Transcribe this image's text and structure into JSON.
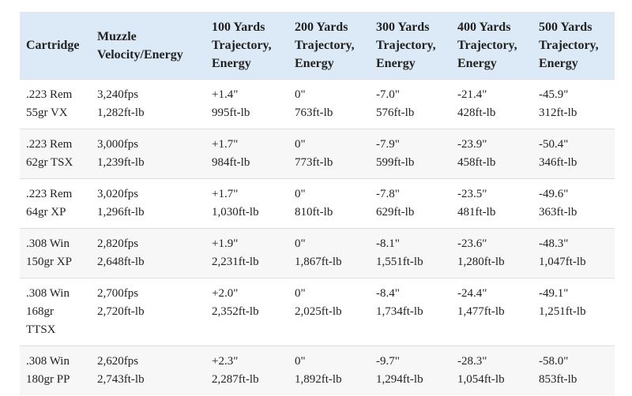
{
  "table": {
    "headers": [
      [
        "Cartridge"
      ],
      [
        "Muzzle",
        "Velocity/Energy"
      ],
      [
        "100 Yards",
        "Trajectory,",
        "Energy"
      ],
      [
        "200 Yards",
        "Trajectory,",
        "Energy"
      ],
      [
        "300 Yards",
        "Trajectory,",
        "Energy"
      ],
      [
        "400 Yards",
        "Trajectory,",
        "Energy"
      ],
      [
        "500 Yards",
        "Trajectory,",
        "Energy"
      ]
    ],
    "rows": [
      [
        [
          ".223 Rem",
          "55gr VX"
        ],
        [
          "3,240fps",
          "1,282ft-lb"
        ],
        [
          "+1.4\"",
          "995ft-lb"
        ],
        [
          "0\"",
          "763ft-lb"
        ],
        [
          "-7.0\"",
          "576ft-lb"
        ],
        [
          "-21.4\"",
          "428ft-lb"
        ],
        [
          "-45.9\"",
          "312ft-lb"
        ]
      ],
      [
        [
          ".223 Rem",
          "62gr TSX"
        ],
        [
          "3,000fps",
          "1,239ft-lb"
        ],
        [
          "+1.7\"",
          "984ft-lb"
        ],
        [
          "0\"",
          "773ft-lb"
        ],
        [
          "-7.9\"",
          "599ft-lb"
        ],
        [
          "-23.9\"",
          "458ft-lb"
        ],
        [
          "-50.4\"",
          "346ft-lb"
        ]
      ],
      [
        [
          ".223 Rem",
          "64gr XP"
        ],
        [
          "3,020fps",
          "1,296ft-lb"
        ],
        [
          "+1.7\"",
          "1,030ft-lb"
        ],
        [
          "0\"",
          "810ft-lb"
        ],
        [
          "-7.8\"",
          "629ft-lb"
        ],
        [
          "-23.5\"",
          "481ft-lb"
        ],
        [
          "-49.6\"",
          "363ft-lb"
        ]
      ],
      [
        [
          ".308 Win",
          "150gr XP"
        ],
        [
          "2,820fps",
          "2,648ft-lb"
        ],
        [
          "+1.9\"",
          "2,231ft-lb"
        ],
        [
          "0\"",
          "1,867ft-lb"
        ],
        [
          "-8.1\"",
          "1,551ft-lb"
        ],
        [
          "-23.6\"",
          "1,280ft-lb"
        ],
        [
          "-48.3\"",
          "1,047ft-lb"
        ]
      ],
      [
        [
          ".308 Win",
          "168gr",
          "TTSX"
        ],
        [
          "2,700fps",
          "2,720ft-lb"
        ],
        [
          "+2.0\"",
          "2,352ft-lb"
        ],
        [
          "0\"",
          "2,025ft-lb"
        ],
        [
          "-8.4\"",
          "1,734ft-lb"
        ],
        [
          "-24.4\"",
          "1,477ft-lb"
        ],
        [
          "-49.1\"",
          "1,251ft-lb"
        ]
      ],
      [
        [
          ".308 Win",
          "180gr PP"
        ],
        [
          "2,620fps",
          "2,743ft-lb"
        ],
        [
          "+2.3\"",
          "2,287ft-lb"
        ],
        [
          "0\"",
          "1,892ft-lb"
        ],
        [
          "-9.7\"",
          "1,294ft-lb"
        ],
        [
          "-28.3\"",
          "1,054ft-lb"
        ],
        [
          "-58.0\"",
          "853ft-lb"
        ]
      ]
    ]
  }
}
